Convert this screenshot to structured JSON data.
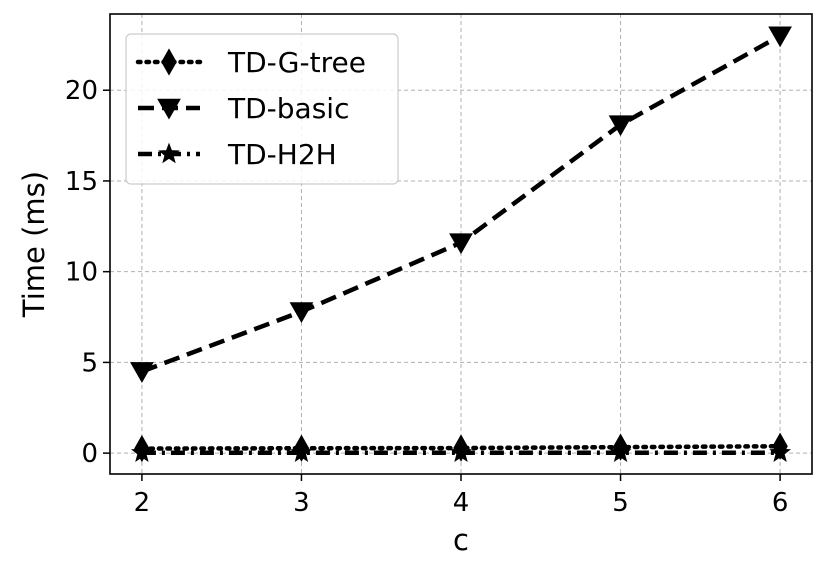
{
  "chart_data": {
    "type": "line",
    "xlabel": "c",
    "ylabel": "Time (ms)",
    "x": [
      2,
      3,
      4,
      5,
      6
    ],
    "xlim": [
      1.8,
      6.2
    ],
    "ylim": [
      -1.15,
      24.2
    ],
    "xticks": [
      2,
      3,
      4,
      5,
      6
    ],
    "yticks": [
      0,
      5,
      10,
      15,
      20
    ],
    "grid": true,
    "legend_position": "top-left",
    "series": [
      {
        "name": "TD-G-tree",
        "values": [
          0.25,
          0.27,
          0.28,
          0.33,
          0.38
        ],
        "line_style": "dotted",
        "marker": "diamond",
        "color": "#000000"
      },
      {
        "name": "TD-basic",
        "values": [
          4.5,
          7.8,
          11.6,
          18.1,
          23.0
        ],
        "line_style": "dashed",
        "marker": "triangle-down",
        "color": "#000000"
      },
      {
        "name": "TD-H2H",
        "values": [
          0.02,
          0.02,
          0.02,
          0.02,
          0.02
        ],
        "line_style": "dashdot",
        "marker": "star",
        "color": "#000000"
      }
    ]
  }
}
